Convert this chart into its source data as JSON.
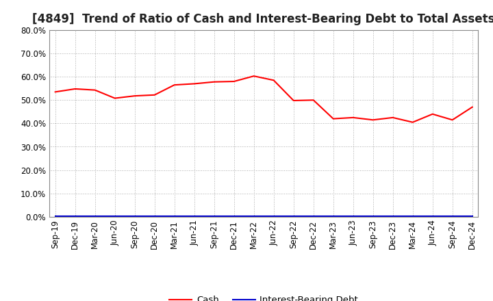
{
  "title": "[4849]  Trend of Ratio of Cash and Interest-Bearing Debt to Total Assets",
  "x_labels": [
    "Sep-19",
    "Dec-19",
    "Mar-20",
    "Jun-20",
    "Sep-20",
    "Dec-20",
    "Mar-21",
    "Jun-21",
    "Sep-21",
    "Dec-21",
    "Mar-22",
    "Jun-22",
    "Sep-22",
    "Dec-22",
    "Mar-23",
    "Jun-23",
    "Sep-23",
    "Dec-23",
    "Mar-24",
    "Jun-24",
    "Sep-24",
    "Dec-24"
  ],
  "cash_values": [
    0.535,
    0.548,
    0.543,
    0.508,
    0.518,
    0.522,
    0.565,
    0.57,
    0.578,
    0.58,
    0.603,
    0.585,
    0.498,
    0.5,
    0.42,
    0.425,
    0.415,
    0.425,
    0.405,
    0.44,
    0.415,
    0.47
  ],
  "interest_debt_values": [
    0.001,
    0.001,
    0.001,
    0.001,
    0.001,
    0.001,
    0.001,
    0.001,
    0.001,
    0.001,
    0.001,
    0.001,
    0.001,
    0.001,
    0.001,
    0.001,
    0.001,
    0.001,
    0.001,
    0.001,
    0.001,
    0.001
  ],
  "cash_color": "#ff0000",
  "interest_debt_color": "#0000cc",
  "ylim": [
    0.0,
    0.8
  ],
  "yticks": [
    0.0,
    0.1,
    0.2,
    0.3,
    0.4,
    0.5,
    0.6,
    0.7,
    0.8
  ],
  "grid_color": "#aaaaaa",
  "background_color": "#ffffff",
  "title_fontsize": 12,
  "tick_fontsize": 8.5,
  "legend_cash": "Cash",
  "legend_debt": "Interest-Bearing Debt"
}
